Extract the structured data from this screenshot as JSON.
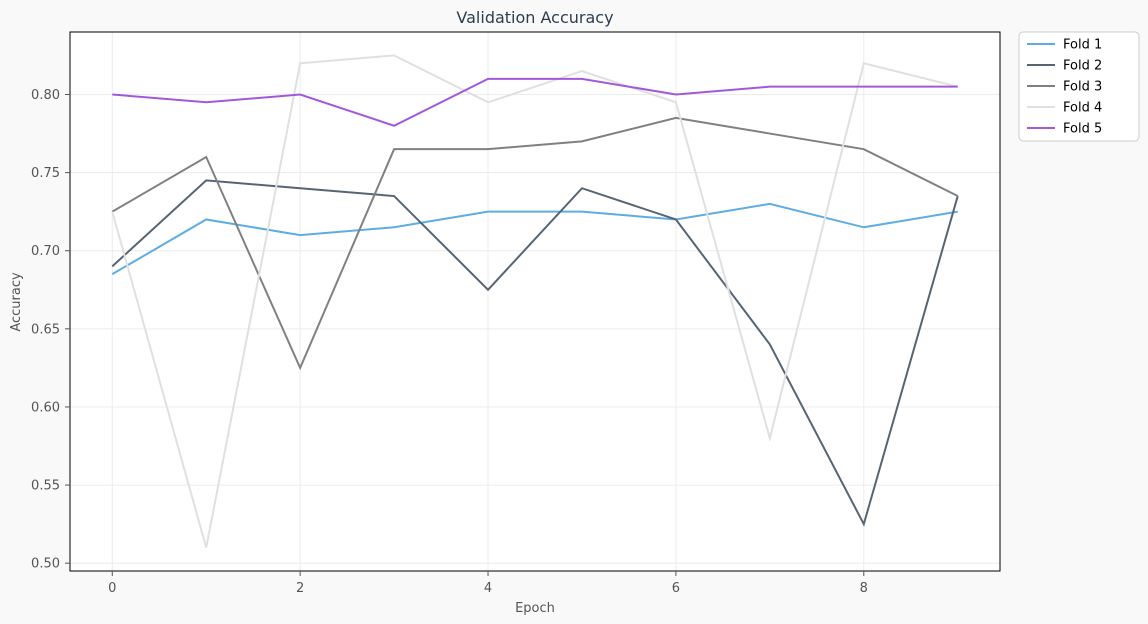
{
  "chart_data": {
    "type": "line",
    "title": "Validation Accuracy",
    "xlabel": "Epoch",
    "ylabel": "Accuracy",
    "x": [
      0,
      1,
      2,
      3,
      4,
      5,
      6,
      7,
      8,
      9
    ],
    "xlim": [
      -0.45,
      9.45
    ],
    "ylim": [
      0.495,
      0.84
    ],
    "xticks": [
      0,
      2,
      4,
      6,
      8
    ],
    "yticks": [
      0.5,
      0.55,
      0.6,
      0.65,
      0.7,
      0.75,
      0.8
    ],
    "grid": true,
    "legend_position": "outside-top-right",
    "series": [
      {
        "name": "Fold 1",
        "color": "#5dade2",
        "values": [
          0.685,
          0.72,
          0.71,
          0.715,
          0.725,
          0.725,
          0.72,
          0.73,
          0.715,
          0.725
        ]
      },
      {
        "name": "Fold 2",
        "color": "#566573",
        "values": [
          0.69,
          0.745,
          0.74,
          0.735,
          0.675,
          0.74,
          0.72,
          0.64,
          0.525,
          0.735
        ]
      },
      {
        "name": "Fold 3",
        "color": "#808080",
        "values": [
          0.725,
          0.76,
          0.625,
          0.765,
          0.765,
          0.77,
          0.785,
          0.775,
          0.765,
          0.735
        ]
      },
      {
        "name": "Fold 4",
        "color": "#e0e0e0",
        "values": [
          0.725,
          0.51,
          0.82,
          0.825,
          0.795,
          0.815,
          0.795,
          0.58,
          0.82,
          0.805
        ]
      },
      {
        "name": "Fold 5",
        "color": "#a259d9",
        "values": [
          0.8,
          0.795,
          0.8,
          0.78,
          0.81,
          0.81,
          0.8,
          0.805,
          0.805,
          0.805
        ]
      }
    ]
  }
}
